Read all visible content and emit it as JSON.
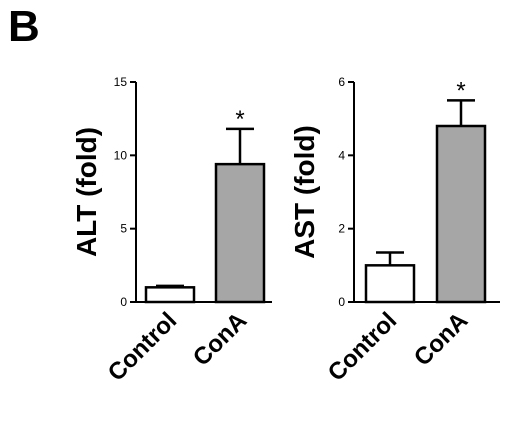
{
  "panel_label": "B",
  "chart_data": [
    {
      "type": "bar",
      "ylabel": "ALT (fold)",
      "ylim": [
        0,
        15
      ],
      "yticks": [
        "0",
        "5",
        "10",
        "15"
      ],
      "categories": [
        "Control",
        "ConA"
      ],
      "values": [
        1.0,
        9.4
      ],
      "errors": [
        0.1,
        2.4
      ],
      "bar_colors": [
        "#ffffff",
        "#a6a6a6"
      ],
      "significance": [
        "",
        "*"
      ]
    },
    {
      "type": "bar",
      "ylabel": "AST (fold)",
      "ylim": [
        0,
        6
      ],
      "yticks": [
        "0",
        "2",
        "4",
        "6"
      ],
      "categories": [
        "Control",
        "ConA"
      ],
      "values": [
        1.0,
        4.8
      ],
      "errors": [
        0.35,
        0.7
      ],
      "bar_colors": [
        "#ffffff",
        "#a6a6a6"
      ],
      "significance": [
        "",
        "*"
      ]
    }
  ]
}
